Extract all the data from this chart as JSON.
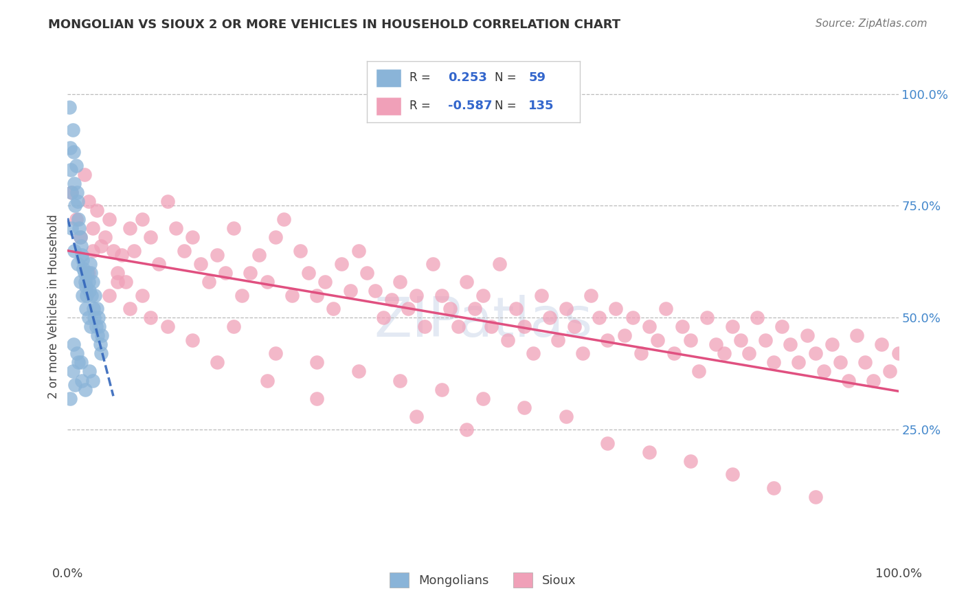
{
  "title": "MONGOLIAN VS SIOUX 2 OR MORE VEHICLES IN HOUSEHOLD CORRELATION CHART",
  "source": "Source: ZipAtlas.com",
  "ylabel": "2 or more Vehicles in Household",
  "watermark": "ZIPatlas",
  "legend_mongolian_r": "0.253",
  "legend_mongolian_n": "59",
  "legend_sioux_r": "-0.587",
  "legend_sioux_n": "135",
  "mongolian_color": "#8ab4d8",
  "sioux_color": "#f0a0b8",
  "mongolian_line_color": "#3366bb",
  "sioux_line_color": "#e05080",
  "ytick_positions": [
    0.25,
    0.5,
    0.75,
    1.0
  ],
  "ytick_labels": [
    "25.0%",
    "50.0%",
    "75.0%",
    "100.0%"
  ],
  "xlim": [
    0.0,
    1.0
  ],
  "ylim": [
    -0.05,
    1.1
  ],
  "mongolian_x": [
    0.002,
    0.003,
    0.004,
    0.005,
    0.006,
    0.007,
    0.008,
    0.009,
    0.01,
    0.011,
    0.012,
    0.013,
    0.014,
    0.015,
    0.016,
    0.017,
    0.018,
    0.019,
    0.02,
    0.021,
    0.022,
    0.023,
    0.024,
    0.025,
    0.026,
    0.027,
    0.028,
    0.029,
    0.03,
    0.031,
    0.032,
    0.033,
    0.034,
    0.035,
    0.036,
    0.037,
    0.038,
    0.039,
    0.04,
    0.041,
    0.005,
    0.008,
    0.012,
    0.015,
    0.018,
    0.022,
    0.025,
    0.028,
    0.003,
    0.006,
    0.009,
    0.013,
    0.017,
    0.021,
    0.026,
    0.03,
    0.007,
    0.011,
    0.016
  ],
  "mongolian_y": [
    0.97,
    0.88,
    0.83,
    0.78,
    0.92,
    0.87,
    0.8,
    0.75,
    0.84,
    0.78,
    0.76,
    0.72,
    0.7,
    0.68,
    0.66,
    0.64,
    0.63,
    0.61,
    0.6,
    0.58,
    0.57,
    0.55,
    0.6,
    0.58,
    0.56,
    0.62,
    0.6,
    0.55,
    0.58,
    0.52,
    0.5,
    0.55,
    0.48,
    0.52,
    0.46,
    0.5,
    0.48,
    0.44,
    0.42,
    0.46,
    0.7,
    0.65,
    0.62,
    0.58,
    0.55,
    0.52,
    0.5,
    0.48,
    0.32,
    0.38,
    0.35,
    0.4,
    0.36,
    0.34,
    0.38,
    0.36,
    0.44,
    0.42,
    0.4
  ],
  "sioux_x": [
    0.005,
    0.01,
    0.015,
    0.02,
    0.025,
    0.03,
    0.035,
    0.04,
    0.045,
    0.05,
    0.055,
    0.06,
    0.065,
    0.07,
    0.075,
    0.08,
    0.09,
    0.1,
    0.11,
    0.12,
    0.13,
    0.14,
    0.15,
    0.16,
    0.17,
    0.18,
    0.19,
    0.2,
    0.21,
    0.22,
    0.23,
    0.24,
    0.25,
    0.26,
    0.27,
    0.28,
    0.29,
    0.3,
    0.31,
    0.32,
    0.33,
    0.34,
    0.35,
    0.36,
    0.37,
    0.38,
    0.39,
    0.4,
    0.41,
    0.42,
    0.43,
    0.44,
    0.45,
    0.46,
    0.47,
    0.48,
    0.49,
    0.5,
    0.51,
    0.52,
    0.53,
    0.54,
    0.55,
    0.56,
    0.57,
    0.58,
    0.59,
    0.6,
    0.61,
    0.62,
    0.63,
    0.64,
    0.65,
    0.66,
    0.67,
    0.68,
    0.69,
    0.7,
    0.71,
    0.72,
    0.73,
    0.74,
    0.75,
    0.76,
    0.77,
    0.78,
    0.79,
    0.8,
    0.81,
    0.82,
    0.83,
    0.84,
    0.85,
    0.86,
    0.87,
    0.88,
    0.89,
    0.9,
    0.91,
    0.92,
    0.93,
    0.94,
    0.95,
    0.96,
    0.97,
    0.98,
    0.99,
    1.0,
    0.025,
    0.05,
    0.075,
    0.1,
    0.15,
    0.2,
    0.25,
    0.3,
    0.35,
    0.4,
    0.45,
    0.5,
    0.55,
    0.6,
    0.65,
    0.7,
    0.75,
    0.8,
    0.85,
    0.9,
    0.03,
    0.06,
    0.09,
    0.12,
    0.18,
    0.24,
    0.3,
    0.42,
    0.48
  ],
  "sioux_y": [
    0.78,
    0.72,
    0.68,
    0.82,
    0.76,
    0.7,
    0.74,
    0.66,
    0.68,
    0.72,
    0.65,
    0.6,
    0.64,
    0.58,
    0.7,
    0.65,
    0.72,
    0.68,
    0.62,
    0.76,
    0.7,
    0.65,
    0.68,
    0.62,
    0.58,
    0.64,
    0.6,
    0.7,
    0.55,
    0.6,
    0.64,
    0.58,
    0.68,
    0.72,
    0.55,
    0.65,
    0.6,
    0.55,
    0.58,
    0.52,
    0.62,
    0.56,
    0.65,
    0.6,
    0.56,
    0.5,
    0.54,
    0.58,
    0.52,
    0.55,
    0.48,
    0.62,
    0.55,
    0.52,
    0.48,
    0.58,
    0.52,
    0.55,
    0.48,
    0.62,
    0.45,
    0.52,
    0.48,
    0.42,
    0.55,
    0.5,
    0.45,
    0.52,
    0.48,
    0.42,
    0.55,
    0.5,
    0.45,
    0.52,
    0.46,
    0.5,
    0.42,
    0.48,
    0.45,
    0.52,
    0.42,
    0.48,
    0.45,
    0.38,
    0.5,
    0.44,
    0.42,
    0.48,
    0.45,
    0.42,
    0.5,
    0.45,
    0.4,
    0.48,
    0.44,
    0.4,
    0.46,
    0.42,
    0.38,
    0.44,
    0.4,
    0.36,
    0.46,
    0.4,
    0.36,
    0.44,
    0.38,
    0.42,
    0.6,
    0.55,
    0.52,
    0.5,
    0.45,
    0.48,
    0.42,
    0.4,
    0.38,
    0.36,
    0.34,
    0.32,
    0.3,
    0.28,
    0.22,
    0.2,
    0.18,
    0.15,
    0.12,
    0.1,
    0.65,
    0.58,
    0.55,
    0.48,
    0.4,
    0.36,
    0.32,
    0.28,
    0.25
  ]
}
